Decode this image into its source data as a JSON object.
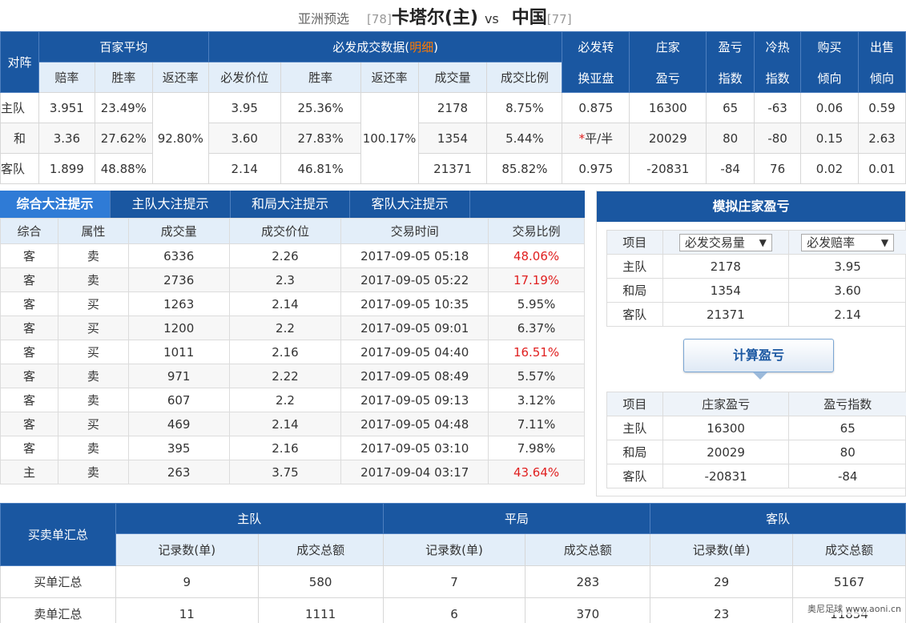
{
  "header": {
    "league": "亚洲预选",
    "home_rank": "[78]",
    "home_team": "卡塔尔(主)",
    "vs": "vs",
    "away_team": "中国",
    "away_rank": "[77]"
  },
  "top": {
    "col_matchup": "对阵",
    "grp_avg": "百家平均",
    "grp_betfair_prefix": "必发成交数据(",
    "grp_betfair_link": "明细",
    "grp_betfair_suffix": ")",
    "col_asian": [
      "必发转",
      "换亚盘"
    ],
    "col_banker": [
      "庄家",
      "盈亏"
    ],
    "col_pl_index": [
      "盈亏",
      "指数"
    ],
    "col_hotcold": [
      "冷热",
      "指数"
    ],
    "col_buy": [
      "购买",
      "倾向"
    ],
    "col_sell": [
      "出售",
      "倾向"
    ],
    "sub": [
      "赔率",
      "胜率",
      "返还率",
      "必发价位",
      "胜率",
      "返还率",
      "成交量",
      "成交比例"
    ],
    "avg_return": "92.80%",
    "bf_return": "100.17%",
    "rows": [
      {
        "label": "主队",
        "odds": "3.951",
        "win": "23.49%",
        "price": "3.95",
        "bf_win": "25.36%",
        "volume": "2178",
        "ratio": "8.75%",
        "asian_star": "",
        "asian": "0.875",
        "banker": "16300",
        "pl": "65",
        "hot": "-63",
        "buy": "0.06",
        "sell": "0.59"
      },
      {
        "label": "和",
        "odds": "3.36",
        "win": "27.62%",
        "price": "3.60",
        "bf_win": "27.83%",
        "volume": "1354",
        "ratio": "5.44%",
        "asian_star": "*",
        "asian": "平/半",
        "banker": "20029",
        "pl": "80",
        "hot": "-80",
        "buy": "0.15",
        "sell": "2.63"
      },
      {
        "label": "客队",
        "odds": "1.899",
        "win": "48.88%",
        "price": "2.14",
        "bf_win": "46.81%",
        "volume": "21371",
        "ratio": "85.82%",
        "asian_star": "",
        "asian": "0.975",
        "banker": "-20831",
        "pl": "-84",
        "hot": "76",
        "buy": "0.02",
        "sell": "0.01"
      }
    ]
  },
  "tabs": [
    "综合大注提示",
    "主队大注提示",
    "和局大注提示",
    "客队大注提示"
  ],
  "deals": {
    "headers": [
      "综合",
      "属性",
      "成交量",
      "成交价位",
      "交易时间",
      "交易比例"
    ],
    "rows": [
      [
        "客",
        "卖",
        "6336",
        "2.26",
        "2017-09-05 05:18",
        "48.06%"
      ],
      [
        "客",
        "卖",
        "2736",
        "2.3",
        "2017-09-05 05:22",
        "17.19%"
      ],
      [
        "客",
        "买",
        "1263",
        "2.14",
        "2017-09-05 10:35",
        "5.95%"
      ],
      [
        "客",
        "买",
        "1200",
        "2.2",
        "2017-09-05 09:01",
        "6.37%"
      ],
      [
        "客",
        "买",
        "1011",
        "2.16",
        "2017-09-05 04:40",
        "16.51%"
      ],
      [
        "客",
        "卖",
        "971",
        "2.22",
        "2017-09-05 08:49",
        "5.57%"
      ],
      [
        "客",
        "卖",
        "607",
        "2.2",
        "2017-09-05 09:13",
        "3.12%"
      ],
      [
        "客",
        "买",
        "469",
        "2.14",
        "2017-09-05 04:48",
        "7.11%"
      ],
      [
        "客",
        "卖",
        "395",
        "2.16",
        "2017-09-05 03:10",
        "7.98%"
      ],
      [
        "主",
        "卖",
        "263",
        "3.75",
        "2017-09-04 03:17",
        "43.64%"
      ]
    ],
    "highlight_color": "#e02020"
  },
  "sim": {
    "title": "模拟庄家盈亏",
    "item": "项目",
    "select1": "必发交易量",
    "select2": "必发赔率",
    "rows1": [
      [
        "主队",
        "2178",
        "3.95"
      ],
      [
        "和局",
        "1354",
        "3.60"
      ],
      [
        "客队",
        "21371",
        "2.14"
      ]
    ],
    "calc_button": "计算盈亏",
    "headers2": [
      "项目",
      "庄家盈亏",
      "盈亏指数"
    ],
    "rows2": [
      [
        "主队",
        "16300",
        "65"
      ],
      [
        "和局",
        "20029",
        "80"
      ],
      [
        "客队",
        "-20831",
        "-84"
      ]
    ]
  },
  "summary": {
    "title": "买卖单汇总",
    "groups": [
      "主队",
      "平局",
      "客队"
    ],
    "sub": [
      "记录数(单)",
      "成交总额"
    ],
    "rows": [
      {
        "label": "买单汇总",
        "values": [
          "9",
          "580",
          "7",
          "283",
          "29",
          "5167"
        ]
      },
      {
        "label": "卖单汇总",
        "values": [
          "11",
          "1111",
          "6",
          "370",
          "23",
          "11854"
        ]
      }
    ]
  },
  "watermark": "奥尼足球 www.aoni.cn",
  "colors": {
    "primary": "#1a57a1",
    "header_light": "#e3eef9",
    "accent": "#ff7a00",
    "red": "#e02020"
  }
}
